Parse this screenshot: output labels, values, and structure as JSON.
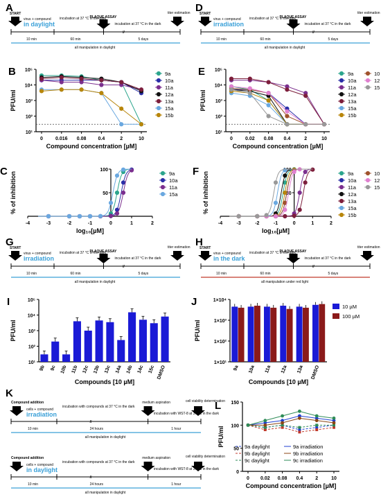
{
  "panels": {
    "A": {
      "label": "A",
      "step1": "virus + compound",
      "step1b": "in daylight",
      "inc": "incubation at 37 °C in the dark",
      "assay": "PLAQUE ASSAY",
      "inc2": "incubation at 37 °C in the dark",
      "start": "START",
      "titer": "titer estimation",
      "t1": "10 min",
      "t2": "60 min",
      "t3": "5 days",
      "bar": "all manipulation in daylight"
    },
    "D": {
      "label": "D",
      "step1": "virus + compound",
      "step1b": "irradiation",
      "inc": "incubation at 37 °C in the dark",
      "assay": "PLAQUE ASSAY",
      "inc2": "incubation at 37 °C in the dark",
      "start": "START",
      "titer": "titer estimation",
      "t1": "10 min",
      "t2": "60 min",
      "t3": "5 days",
      "bar": "all manipulation in daylight"
    },
    "G": {
      "label": "G",
      "step1": "virus + compound",
      "step1b": "irradiation",
      "inc": "incubation at 37 °C in the dark",
      "assay": "PLAQUE ASSAY",
      "inc2": "incubation at 37 °C in the dark",
      "start": "START",
      "titer": "titer estimation",
      "t1": "10 min",
      "t2": "60 min",
      "t3": "5 days",
      "bar": "all manipulation in daylight"
    },
    "H": {
      "label": "H",
      "step1": "virus + compound",
      "step1b": "in the dark",
      "inc": "incubation at 37 °C in the dark",
      "assay": "PLAQUE ASSAY",
      "inc2": "incubation at 37 °C in the dark",
      "start": "START",
      "titer": "titer estimation",
      "t1": "10 min",
      "t2": "60 min",
      "t3": "5 days",
      "bar": "all manipulation under red light"
    },
    "K1": {
      "label": "K",
      "add": "Compound addition",
      "step1": "cells + compound",
      "step1b": "irradiation",
      "inc": "incubation with compounds at 37 °C in the dark",
      "asp": "medium aspiration",
      "wst": "incubation with WST-8 at 37 °C in the dark",
      "cv": "cell viability determination",
      "t1": "10 min",
      "t2": "24 hours",
      "t3": "1 hour",
      "bar": "all manipulation in daylight"
    },
    "K2": {
      "add": "Compound addition",
      "step1": "cells + compound",
      "step1b": "in daylight",
      "inc": "incubation with compounds at 37 °C in the dark",
      "asp": "medium aspiration",
      "wst": "incubation with WST-8 at 37 °C in the dark",
      "cv": "cell viability determination",
      "t1": "10 min",
      "t2": "24 hours",
      "t3": "1 hour",
      "bar": "all manipulation in daylight"
    }
  },
  "colors": {
    "9a": "#2ca58d",
    "10a": "#2b2fa8",
    "11a": "#7b2f8e",
    "12a": "#111111",
    "13a": "#7d1f3c",
    "15a": "#6aa8e0",
    "15b": "#b8860b",
    "10": "#a0522d",
    "12": "#e080d0",
    "15": "#999999",
    "barblue": "#1a1ad6",
    "barred": "#8b1a1a"
  },
  "chart_data": [
    {
      "panel": "B",
      "type": "line",
      "ylabel": "PFU/ml",
      "xlabel": "Compound concentration [µM]",
      "categories": [
        "0",
        "0.016",
        "0.08",
        "0.4",
        "2",
        "10"
      ],
      "ylog": true,
      "ylim": [
        10,
        100000
      ],
      "yticks": [
        "10¹",
        "10²",
        "10³",
        "10⁴",
        "10⁵"
      ],
      "dotted_line": 30,
      "series": [
        {
          "name": "9a",
          "values": [
            40000,
            40000,
            35000,
            20000,
            15000,
            30
          ]
        },
        {
          "name": "10a",
          "values": [
            20000,
            20000,
            20000,
            20000,
            15000,
            3000
          ]
        },
        {
          "name": "11a",
          "values": [
            20000,
            15000,
            15000,
            10000,
            10000,
            5000
          ]
        },
        {
          "name": "12a",
          "values": [
            30000,
            35000,
            30000,
            25000,
            15000,
            4000
          ]
        },
        {
          "name": "13a",
          "values": [
            25000,
            30000,
            25000,
            20000,
            15000,
            5000
          ]
        },
        {
          "name": "15a",
          "values": [
            5000,
            5000,
            5000,
            3000,
            30,
            30
          ]
        },
        {
          "name": "15b",
          "values": [
            4000,
            5000,
            5000,
            3000,
            300,
            30
          ]
        }
      ]
    },
    {
      "panel": "E",
      "type": "line",
      "ylabel": "PFU/ml",
      "xlabel": "Compound concentration [µM]",
      "categories": [
        "0",
        "0.02",
        "0.08",
        "0.4",
        "2",
        "10"
      ],
      "ylog": true,
      "ylim": [
        10,
        100000
      ],
      "yticks": [
        "10¹",
        "10²",
        "10³",
        "10⁴",
        "10⁵"
      ],
      "dotted_line": 30,
      "series": [
        {
          "name": "9a",
          "values": [
            8000,
            5000,
            1000,
            30,
            30,
            30
          ]
        },
        {
          "name": "10a",
          "values": [
            5000,
            5000,
            3000,
            300,
            30,
            30
          ]
        },
        {
          "name": "11a",
          "values": [
            20000,
            20000,
            15000,
            8000,
            3000,
            30
          ]
        },
        {
          "name": "12a",
          "values": [
            5000,
            4000,
            2000,
            30,
            30,
            30
          ]
        },
        {
          "name": "13a",
          "values": [
            25000,
            25000,
            15000,
            5000,
            2000,
            30
          ]
        },
        {
          "name": "15a",
          "values": [
            3000,
            2000,
            500,
            30,
            30,
            30
          ]
        },
        {
          "name": "15b",
          "values": [
            4000,
            3000,
            1000,
            30,
            30,
            30
          ]
        },
        {
          "name": "10",
          "values": [
            6000,
            5000,
            3000,
            100,
            30,
            30
          ]
        },
        {
          "name": "12",
          "values": [
            8000,
            6000,
            3000,
            200,
            30,
            30
          ]
        },
        {
          "name": "15",
          "values": [
            5000,
            3000,
            100,
            30,
            30,
            30
          ]
        }
      ]
    },
    {
      "panel": "C",
      "type": "line",
      "ylabel": "% of inhibition",
      "xlabel": "log₁₀[µM]",
      "xlim": [
        -4,
        2
      ],
      "xticks": [
        "-4",
        "-3",
        "-2",
        "-1",
        "0",
        "1",
        "2"
      ],
      "ylim": [
        0,
        100
      ],
      "yticks": [
        "50",
        "100"
      ],
      "series": [
        {
          "name": "9a",
          "ic50": 0.3
        },
        {
          "name": "10a",
          "ic50": 0.5
        },
        {
          "name": "11a",
          "ic50": 0.6
        },
        {
          "name": "15a",
          "ic50": 0.1
        }
      ]
    },
    {
      "panel": "F",
      "type": "line",
      "ylabel": "% of inhibition",
      "xlabel": "log₁₀[µM]",
      "xlim": [
        -4,
        2
      ],
      "xticks": [
        "-4",
        "-3",
        "-2",
        "-1",
        "0",
        "1",
        "2"
      ],
      "ylim": [
        0,
        100
      ],
      "yticks": [
        "50",
        "100"
      ],
      "series": [
        {
          "name": "9a",
          "ic50": -0.6
        },
        {
          "name": "10a",
          "ic50": -0.4
        },
        {
          "name": "11a",
          "ic50": 0.3
        },
        {
          "name": "12a",
          "ic50": -0.7
        },
        {
          "name": "13a",
          "ic50": 0.5
        },
        {
          "name": "15a",
          "ic50": -0.9
        },
        {
          "name": "15b",
          "ic50": -0.5
        },
        {
          "name": "10",
          "ic50": -0.4
        },
        {
          "name": "12",
          "ic50": -0.3
        },
        {
          "name": "15",
          "ic50": -1.1
        }
      ]
    },
    {
      "panel": "I",
      "type": "bar",
      "ylabel": "PFU/ml",
      "xlabel": "Compounds [10 µM]",
      "categories": [
        "9b",
        "9c",
        "10b",
        "11b",
        "12c",
        "13b",
        "13c",
        "14a",
        "14b",
        "14c",
        "15c",
        "DMSO"
      ],
      "values": [
        30,
        200,
        30,
        4000,
        1000,
        4500,
        3500,
        250,
        15000,
        5000,
        3000,
        8000
      ],
      "ylog": true,
      "ylim": [
        10,
        100000
      ],
      "yticks": [
        "10¹",
        "10²",
        "10³",
        "10⁴",
        "10⁵"
      ]
    },
    {
      "panel": "J",
      "type": "bar",
      "ylabel": "PFU/ml",
      "xlabel": "Compounds [10 µM]",
      "categories": [
        "9a",
        "10a",
        "11a",
        "12a",
        "13a",
        "DMSO"
      ],
      "series": [
        {
          "name": "10 µM",
          "values": [
            4500,
            4500,
            4500,
            5000,
            4500,
            5500
          ]
        },
        {
          "name": "100 µM",
          "values": [
            4000,
            5000,
            4000,
            3500,
            4000,
            6000
          ]
        }
      ],
      "ylog": true,
      "ylim": [
        10,
        10000
      ],
      "yticks": [
        "1×10¹",
        "1×10²",
        "1×10³",
        "1×10⁴"
      ]
    },
    {
      "panel": "L",
      "type": "line",
      "ylabel": "PFU/ml",
      "xlabel": "Compound concentration [µM]",
      "categories": [
        "0",
        "0.02",
        "0.08",
        "0.4",
        "2",
        "10"
      ],
      "ylim": [
        0,
        150
      ],
      "yticks": [
        "0",
        "50",
        "100",
        "150"
      ],
      "series": [
        {
          "name": "9a daylight",
          "values": [
            100,
            95,
            100,
            90,
            95,
            100
          ]
        },
        {
          "name": "9b daylight",
          "values": [
            100,
            90,
            95,
            85,
            90,
            95
          ]
        },
        {
          "name": "9c daylight",
          "values": [
            100,
            95,
            100,
            95,
            100,
            100
          ]
        },
        {
          "name": "9a irradiation",
          "values": [
            100,
            105,
            110,
            120,
            115,
            110
          ]
        },
        {
          "name": "9b irradiation",
          "values": [
            100,
            100,
            105,
            115,
            110,
            105
          ]
        },
        {
          "name": "9c irradiation",
          "values": [
            100,
            110,
            120,
            130,
            120,
            115
          ]
        }
      ]
    }
  ],
  "labels": {
    "B": "B",
    "C": "C",
    "E": "E",
    "F": "F",
    "I": "I",
    "J": "J",
    "L": "L"
  }
}
